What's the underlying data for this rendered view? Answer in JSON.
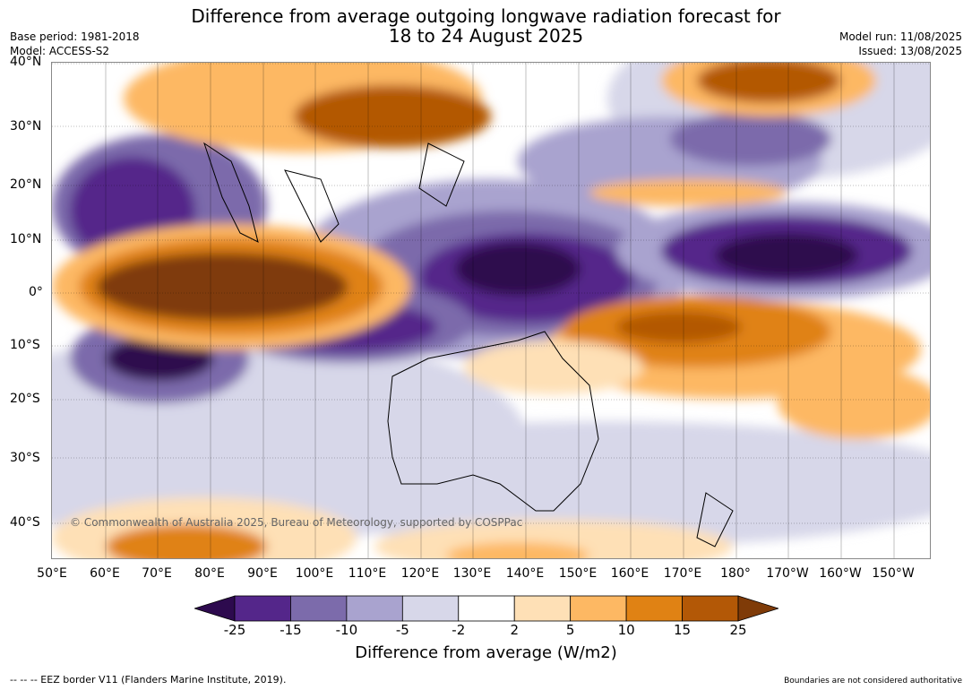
{
  "title": {
    "line1": "Difference from average outgoing longwave radiation forecast for",
    "line2": "18 to 24 August 2025"
  },
  "meta_left": {
    "base_period": "Base period: 1981-2018",
    "model": "Model: ACCESS-S2"
  },
  "meta_right": {
    "model_run": "Model run: 11/08/2025",
    "issued": "Issued: 13/08/2025"
  },
  "lat_labels": [
    "40°N",
    "30°N",
    "20°N",
    "10°N",
    "0°",
    "10°S",
    "20°S",
    "30°S",
    "40°S"
  ],
  "lon_labels": [
    "50°E",
    "60°E",
    "70°E",
    "80°E",
    "90°E",
    "100°E",
    "110°E",
    "120°E",
    "130°E",
    "140°E",
    "150°E",
    "160°E",
    "170°E",
    "180°",
    "170°W",
    "160°W",
    "150°W"
  ],
  "copyright": "© Commonwealth of Australia 2025, Bureau of Meteorology, supported by COSPPac",
  "colorbar": {
    "ticks": [
      "-25",
      "-15",
      "-10",
      "-5",
      "-2",
      "2",
      "5",
      "10",
      "15",
      "25"
    ],
    "colors": [
      "#2d0a4e",
      "#54268a",
      "#7c6bab",
      "#a9a3cf",
      "#d7d7e9",
      "#ffffff",
      "#fee0b6",
      "#fdb863",
      "#e08214",
      "#b35806",
      "#7f3b08"
    ],
    "label": "Difference from average (W/m2)"
  },
  "footer_left": "--  --  -- EEZ border V11 (Flanders Marine Institute, 2019).",
  "footer_right": "Boundaries are not considered authoritative"
}
